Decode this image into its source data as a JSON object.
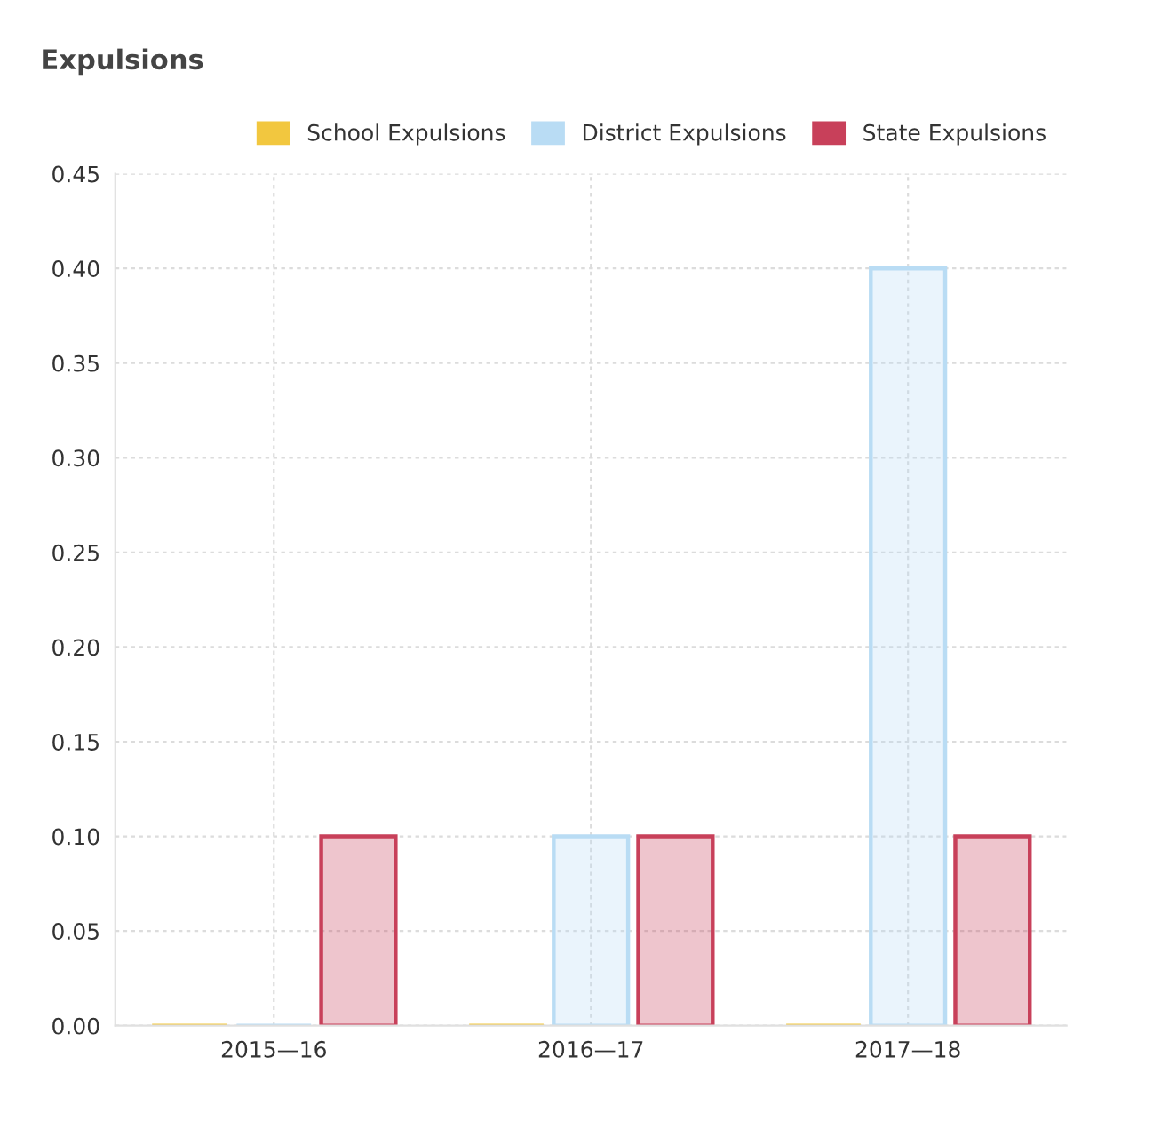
{
  "chart_data": {
    "type": "bar",
    "title": "Expulsions",
    "categories": [
      "2015—16",
      "2016—17",
      "2017—18"
    ],
    "series": [
      {
        "name": "School Expulsions",
        "color": "#f2c73f",
        "values": [
          0,
          0,
          0
        ]
      },
      {
        "name": "District Expulsions",
        "color": "#b9dcf4",
        "values": [
          0,
          0.1,
          0.4
        ]
      },
      {
        "name": "State Expulsions",
        "color": "#c8405a",
        "values": [
          0.1,
          0.1,
          0.1
        ]
      }
    ],
    "ylim": [
      0,
      0.45
    ],
    "yticks": [
      {
        "value": 0,
        "label": "0.00"
      },
      {
        "value": 0.05,
        "label": "0.05"
      },
      {
        "value": 0.1,
        "label": "0.10"
      },
      {
        "value": 0.15,
        "label": "0.15"
      },
      {
        "value": 0.2,
        "label": "0.20"
      },
      {
        "value": 0.25,
        "label": "0.25"
      },
      {
        "value": 0.3,
        "label": "0.30"
      },
      {
        "value": 0.35,
        "label": "0.35"
      },
      {
        "value": 0.4,
        "label": "0.40"
      },
      {
        "value": 0.45,
        "label": "0.45"
      }
    ],
    "grid": true,
    "legend": "top right"
  }
}
